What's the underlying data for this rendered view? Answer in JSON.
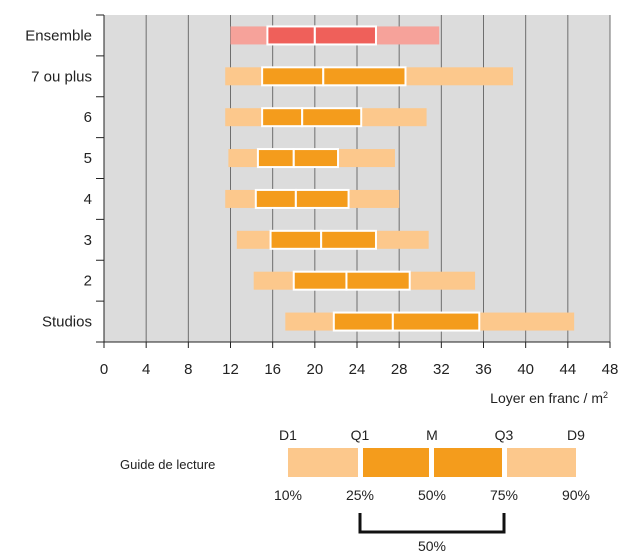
{
  "chart_data": {
    "type": "boxplot",
    "xlabel": "Loyer en franc / m",
    "xlabel_sup": "2",
    "xlim": [
      0,
      48
    ],
    "x_ticks": [
      0,
      4,
      8,
      12,
      16,
      20,
      24,
      28,
      32,
      36,
      40,
      44,
      48
    ],
    "grid": "vertical",
    "categories": [
      "Ensemble",
      "7 ou plus",
      "6",
      "5",
      "4",
      "3",
      "2",
      "Studios"
    ],
    "series": [
      {
        "category": "Ensemble",
        "d1": 12,
        "q1": 15.5,
        "median": 20,
        "q3": 25.8,
        "d9": 31.8,
        "highlight": true
      },
      {
        "category": "7 ou plus",
        "d1": 11.5,
        "q1": 15,
        "median": 20.8,
        "q3": 28.6,
        "d9": 38.8
      },
      {
        "category": "6",
        "d1": 11.5,
        "q1": 15,
        "median": 18.8,
        "q3": 24.4,
        "d9": 30.6
      },
      {
        "category": "5",
        "d1": 11.8,
        "q1": 14.6,
        "median": 18,
        "q3": 22.2,
        "d9": 27.6
      },
      {
        "category": "4",
        "d1": 11.5,
        "q1": 14.4,
        "median": 18.2,
        "q3": 23.2,
        "d9": 28
      },
      {
        "category": "3",
        "d1": 12.6,
        "q1": 15.8,
        "median": 20.6,
        "q3": 25.8,
        "d9": 30.8
      },
      {
        "category": "2",
        "d1": 14.2,
        "q1": 18,
        "median": 23,
        "q3": 29,
        "d9": 35.2
      },
      {
        "category": "Studios",
        "d1": 17.2,
        "q1": 21.8,
        "median": 27.4,
        "q3": 35.6,
        "d9": 44.6
      }
    ],
    "colors": {
      "decile": "#fcc88c",
      "quartile": "#f49c1c",
      "highlight_decile": "#f6a29a",
      "highlight_quartile": "#ef605a",
      "background": "#dcdcdc",
      "grid": "#6e6e6e"
    }
  },
  "guide": {
    "title": "Guide de lecture",
    "top_labels": [
      "D1",
      "Q1",
      "M",
      "Q3",
      "D9"
    ],
    "bottom_labels": [
      "10%",
      "25%",
      "50%",
      "75%",
      "90%"
    ],
    "bracket_label": "50%"
  }
}
